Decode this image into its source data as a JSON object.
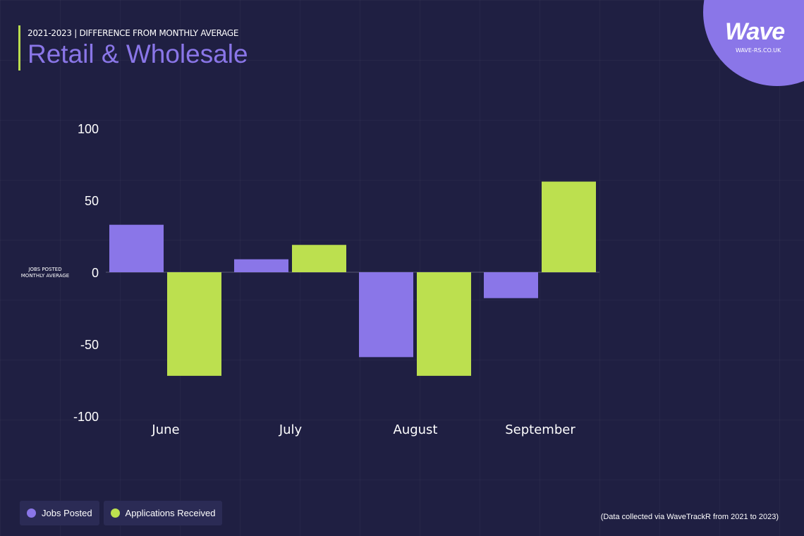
{
  "header": {
    "subtitle": "2021-2023 | DIFFERENCE FROM MONTHLY AVERAGE",
    "title": "Retail & Wholesale"
  },
  "logo": {
    "word": "Wave",
    "url": "WAVE-RS.CO.UK"
  },
  "footnote": "(Data collected via WaveTrackR from 2021 to 2023)",
  "colors": {
    "background": "#1f1f42",
    "jobs": "#8a76e8",
    "applications": "#bce04f"
  },
  "chart_data": {
    "type": "bar",
    "categories": [
      "June",
      "July",
      "August",
      "September"
    ],
    "series": [
      {
        "name": "Jobs Posted",
        "values": [
          33,
          9,
          -59,
          -18
        ]
      },
      {
        "name": "Applications Received",
        "values": [
          -72,
          19,
          -72,
          63
        ]
      }
    ],
    "yticks": [
      100,
      50,
      0,
      -50,
      -100
    ],
    "ylim": [
      -100,
      100
    ],
    "zero_label": [
      "JOBS POSTED",
      "MONTHLY AVERAGE"
    ],
    "legend_placement": "bottom-left",
    "grid": false
  }
}
